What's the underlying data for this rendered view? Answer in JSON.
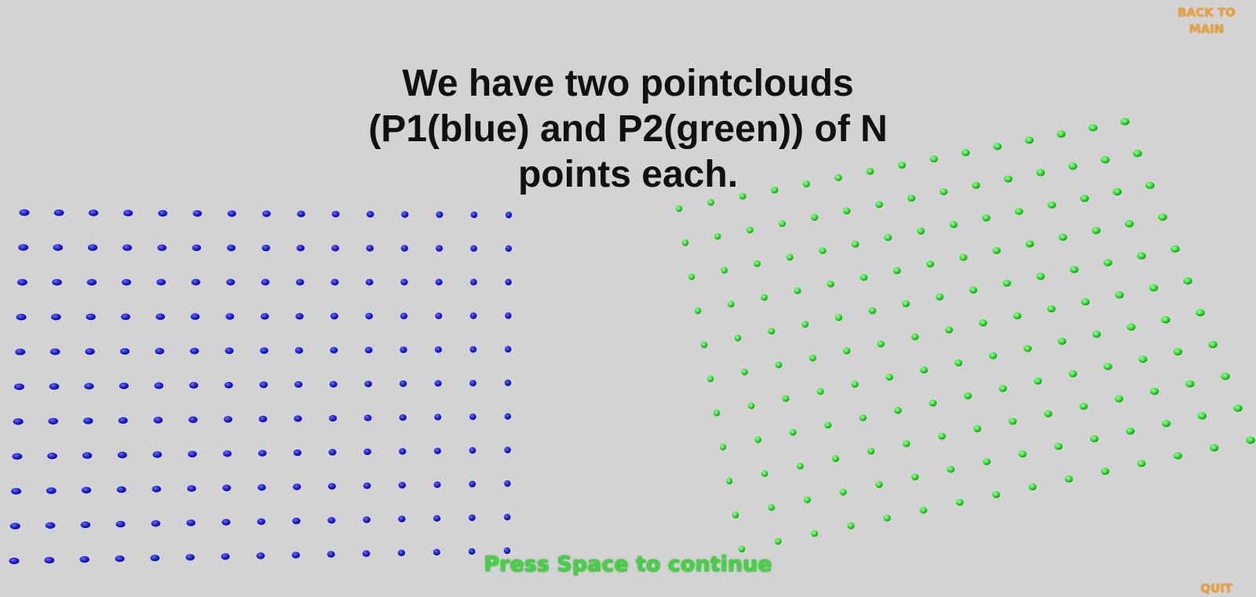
{
  "intro": {
    "lines": [
      "We have two pointclouds",
      "(P1(blue) and P2(green)) of N",
      "points each."
    ]
  },
  "nav": {
    "back_lines": [
      "BACK TO",
      "MAIN"
    ],
    "quit_label": "QUIT"
  },
  "prompt": {
    "continue_label": "Press Space to continue"
  },
  "colors": {
    "background": "#d3d3d3",
    "p1_point": "#1f1fdc",
    "p2_point": "#2ee02e",
    "nav_text": "#f0a23a",
    "prompt_text": "#3dd63d"
  },
  "pointclouds": {
    "p1": {
      "color_name": "blue",
      "rows": 11,
      "cols": 15,
      "shape": "planar-grid"
    },
    "p2": {
      "color_name": "green",
      "rows": 11,
      "cols": 15,
      "shape": "rotated-planar-grid"
    }
  }
}
